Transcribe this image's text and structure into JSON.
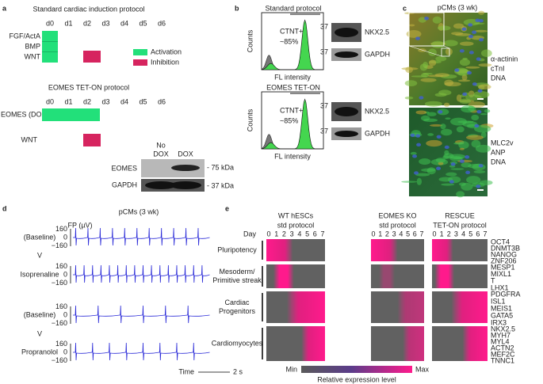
{
  "panel_a": {
    "label": "a",
    "standard": {
      "title": "Standard cardiac induction protocol",
      "days": [
        "d0",
        "d1",
        "d2",
        "d3",
        "d4",
        "d5",
        "d6"
      ],
      "rows": [
        "FGF/ActA",
        "BMP",
        "WNT"
      ]
    },
    "legend": [
      "Activation",
      "Inhibition"
    ],
    "eomes": {
      "title": "EOMES TET-ON protocol",
      "days": [
        "d0",
        "d1",
        "d2",
        "d3",
        "d4",
        "d5",
        "d6"
      ],
      "rows": [
        "EOMES (DOX)",
        "WNT"
      ]
    },
    "blot": {
      "lanes": [
        [
          "No",
          "DOX"
        ],
        [
          "DOX"
        ]
      ],
      "bands": [
        "EOMES",
        "GAPDH"
      ],
      "markers": [
        "- 75 kDa",
        "- 37 kDa"
      ]
    }
  },
  "panel_b": {
    "label": "b",
    "plots": [
      {
        "title": "Standard protocol",
        "ylabel": "Counts",
        "gate": "CTNT+",
        "percent": "~85%",
        "xlabel": "FL intensity",
        "blot": [
          {
            "marker": "37",
            "band": "NKX2.5"
          },
          {
            "marker": "37",
            "band": "GAPDH"
          }
        ]
      },
      {
        "title": "EOMES TET-ON",
        "ylabel": "Counts",
        "gate": "CTNT+",
        "percent": "~85%",
        "xlabel": "FL intensity",
        "blot": [
          {
            "marker": "37",
            "band": "NKX2.5"
          },
          {
            "marker": "37",
            "band": "GAPDH"
          }
        ]
      }
    ]
  },
  "panel_c": {
    "label": "c",
    "title": "pCMs (3 wk)",
    "top_stains": [
      "α-actinin",
      "cTnI",
      "DNA"
    ],
    "bottom_stains": [
      "MLC2v",
      "ANP",
      "DNA"
    ]
  },
  "panel_d": {
    "label": "d",
    "title": "pCMs (3 wk)",
    "ylabel": "FP (µV)",
    "traces": [
      {
        "label": "(Baseline)",
        "yticks": [
          "160",
          "0",
          "−160"
        ]
      },
      {
        "label": "Isoprenaline",
        "yticks": [
          "160",
          "0",
          "−160"
        ]
      },
      {
        "label": "(Baseline)",
        "yticks": [
          "160",
          "0",
          "−160"
        ]
      },
      {
        "label": "Propranolol",
        "yticks": [
          "160",
          "0",
          "−160"
        ]
      }
    ],
    "separators": [
      "V",
      "V"
    ],
    "time_label": "Time",
    "scale_label": "2 s"
  },
  "panel_e": {
    "label": "e",
    "columns": [
      [
        "WT hESCs",
        "std protocol"
      ],
      [
        "EOMES KO",
        "std protocol"
      ],
      [
        "RESCUE",
        "TET-ON protocol"
      ]
    ],
    "day_label": "Day",
    "days": [
      "0",
      "1",
      "2",
      "3",
      "4",
      "5",
      "6",
      "7"
    ],
    "rows": [
      {
        "name": [
          "Pluripotency"
        ],
        "genes": [
          "OCT4",
          "DNMT3B",
          "NANOG",
          "ZNF206"
        ]
      },
      {
        "name": [
          "Mesoderm/",
          "Primitive streak"
        ],
        "genes": [
          "MESP1",
          "MIXL1",
          "T",
          "LHX1"
        ]
      },
      {
        "name": [
          "Cardiac",
          "Progenitors"
        ],
        "genes": [
          "PDGFRA",
          "ISL1",
          "MEIS1",
          "GATA5",
          "IRX3"
        ]
      },
      {
        "name": [
          "Cardiomyocytes"
        ],
        "genes": [
          "NKX2.5",
          "MYH7",
          "MYL4",
          "ACTN2",
          "MEF2C",
          "TNNC1"
        ]
      }
    ],
    "scale": {
      "min": "Min",
      "max": "Max",
      "label": "Relative expression level"
    }
  }
}
